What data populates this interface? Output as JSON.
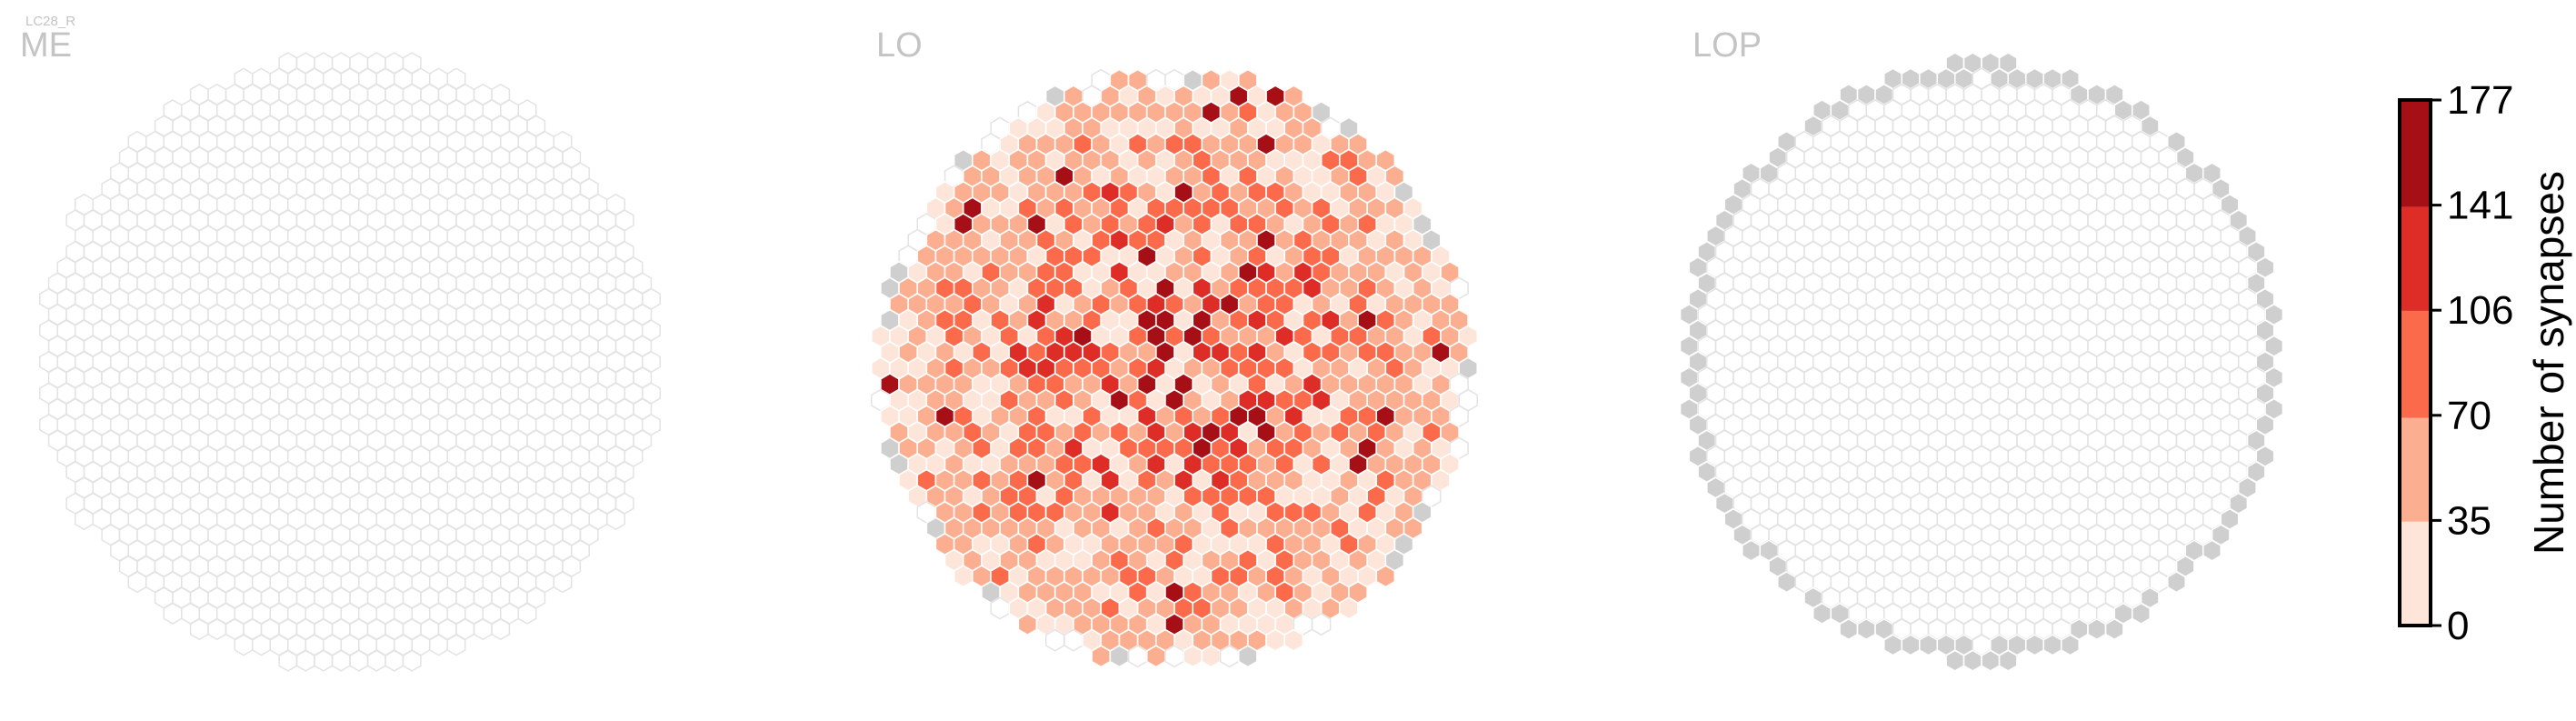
{
  "cell_type": "LC28_R",
  "chart_data": [
    {
      "type": "heatmap",
      "title": "ME",
      "description": "hexagonal column map of the medulla; every column has 0 synapses",
      "rows": 37,
      "max_per_row": 35,
      "data": "0"
    },
    {
      "type": "heatmap",
      "title": "LO",
      "description": "hexagonal column map of the lobula; synapse counts per column, a few columns gray (no data)",
      "rows": 34,
      "max_per_row": 34,
      "data": "synapse counts 0-177 per column"
    },
    {
      "type": "heatmap",
      "title": "LOP",
      "description": "hexagonal column map of the lobula plate; columns 0 synapses, outer ring gray (no data)",
      "rows": 36,
      "max_per_row": 34,
      "data": "0"
    }
  ],
  "colorbar": {
    "label": "Number of synapses",
    "ticks": [
      "0",
      "35",
      "70",
      "106",
      "141",
      "177"
    ],
    "min": 0,
    "max": 177,
    "bins": [
      {
        "from": 0,
        "to": 35,
        "color": "#fee5d9"
      },
      {
        "from": 35,
        "to": 70,
        "color": "#fcae91"
      },
      {
        "from": 70,
        "to": 106,
        "color": "#fb6a4a"
      },
      {
        "from": 106,
        "to": 141,
        "color": "#de2d26"
      },
      {
        "from": 141,
        "to": 177,
        "color": "#a50f15"
      }
    ]
  },
  "colors": {
    "no_data": "#cfcfcf",
    "empty_fill": "#ffffff",
    "empty_stroke": "#e3e3e3",
    "cell_stroke": "#ffffff",
    "title": "#c4c4c4"
  }
}
